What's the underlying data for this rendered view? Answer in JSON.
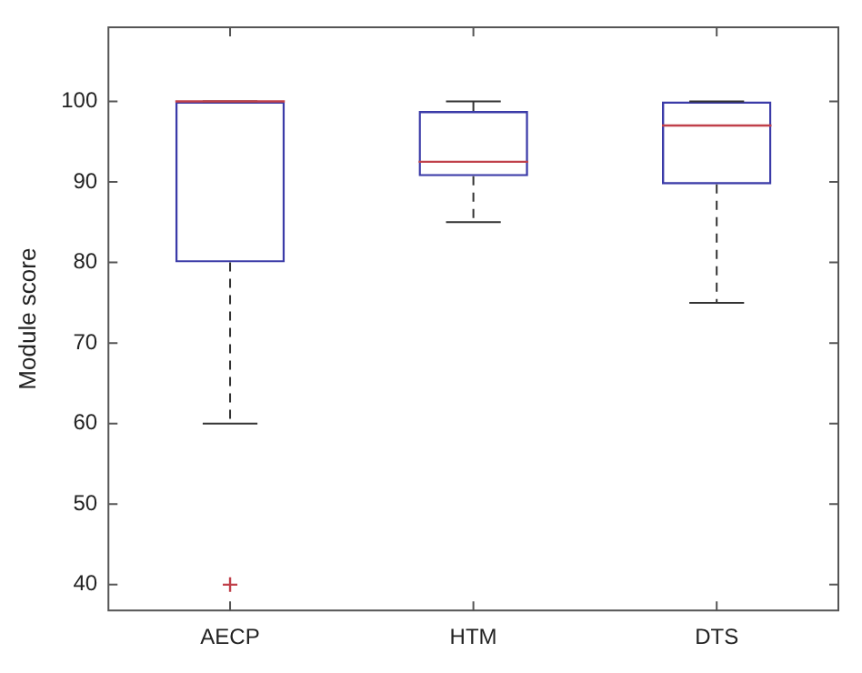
{
  "chart_data": {
    "type": "box",
    "ylabel": "Module score",
    "categories": [
      "AECP",
      "HTM",
      "DTS"
    ],
    "series": [
      {
        "color": "#3b3ba8",
        "boxes": [
          {
            "low": 60,
            "q1": 80,
            "median": 100,
            "q3": 100,
            "high": 100,
            "outliers": [
              40
            ]
          },
          {
            "low": 85,
            "q1": 90.7,
            "median": 92.5,
            "q3": 98.8,
            "high": 100
          },
          {
            "low": 75,
            "q1": 89.7,
            "median": 97,
            "q3": 100,
            "high": 100
          }
        ]
      }
    ],
    "ylim": [
      36.8,
      109.2
    ],
    "yticks": [
      40,
      50,
      60,
      70,
      80,
      90,
      100
    ],
    "grid": false,
    "legend": false
  }
}
